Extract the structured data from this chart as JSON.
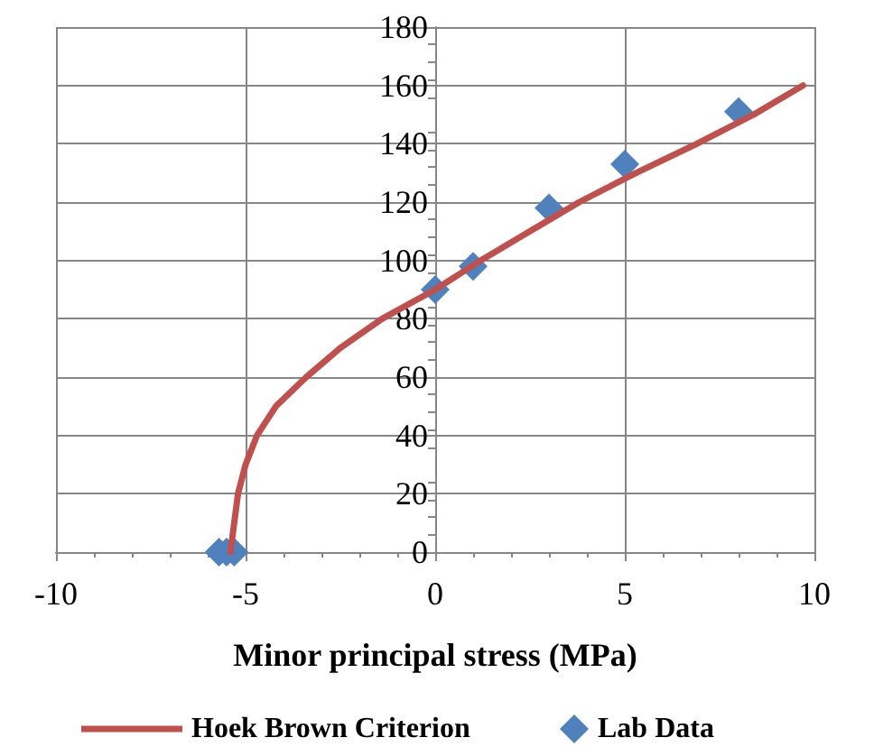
{
  "chart_data": {
    "type": "line",
    "xlabel": "Minor principal stress (MPa)",
    "xlim": [
      -10,
      10
    ],
    "xticks": [
      -10,
      -5,
      0,
      5,
      10
    ],
    "ylim": [
      0,
      180
    ],
    "yticks": [
      0,
      20,
      40,
      60,
      80,
      100,
      120,
      140,
      160,
      180
    ],
    "grid": true,
    "legend": "bottom",
    "series": [
      {
        "name": "Hoek Brown Criterion",
        "color": "#c0504d",
        "marker": "none",
        "line_style": "solid",
        "x": [
          -5.4,
          -5.3,
          -5.2,
          -5.0,
          -4.7,
          -4.2,
          -3.4,
          -2.5,
          -1.4,
          0,
          1.2,
          2.5,
          3.8,
          5.3,
          6.9,
          8.4,
          9.7
        ],
        "values": [
          0,
          10,
          20,
          30,
          40,
          50,
          60,
          70,
          80,
          90,
          100,
          110,
          120,
          130,
          140,
          150,
          160
        ]
      },
      {
        "name": "Lab Data",
        "type": "scatter",
        "color": "#4f81bd",
        "marker": "diamond",
        "x": [
          -5.7,
          -5.5,
          -5.3,
          0,
          1,
          3,
          5,
          8
        ],
        "values": [
          0,
          0,
          0,
          90,
          98,
          118,
          133,
          151
        ]
      }
    ]
  }
}
